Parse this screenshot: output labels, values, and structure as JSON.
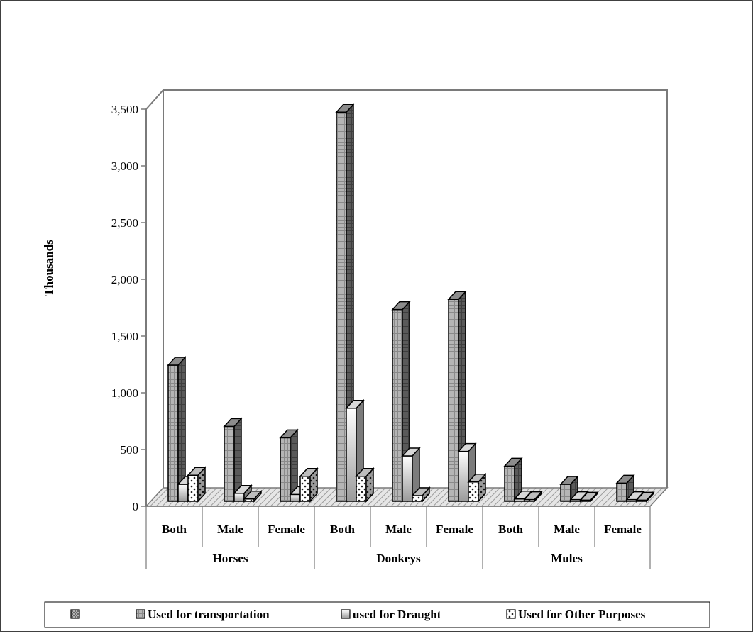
{
  "chart_data": {
    "type": "bar",
    "ylabel": "Thousands",
    "ylim": [
      0,
      3500
    ],
    "yticks": [
      "0",
      "500",
      "1,000",
      "1,500",
      "2,000",
      "2,500",
      "3,000",
      "3,500"
    ],
    "groups": [
      {
        "label": "Horses",
        "categories": [
          "Both",
          "Male",
          "Female"
        ]
      },
      {
        "label": "Donkeys",
        "categories": [
          "Both",
          "Male",
          "Female"
        ]
      },
      {
        "label": "Mules",
        "categories": [
          "Both",
          "Male",
          "Female"
        ]
      }
    ],
    "series": [
      {
        "name": "Used for transportation",
        "values": [
          1200,
          660,
          560,
          3430,
          1690,
          1780,
          310,
          150,
          160
        ]
      },
      {
        "name": "used for Draught",
        "values": [
          150,
          70,
          60,
          820,
          400,
          440,
          20,
          15,
          15
        ]
      },
      {
        "name": "Used for Other Purposes",
        "values": [
          230,
          20,
          220,
          220,
          50,
          170,
          15,
          10,
          10
        ]
      }
    ],
    "legend": {
      "position": "bottom",
      "first_entry": ""
    },
    "grid": false
  }
}
